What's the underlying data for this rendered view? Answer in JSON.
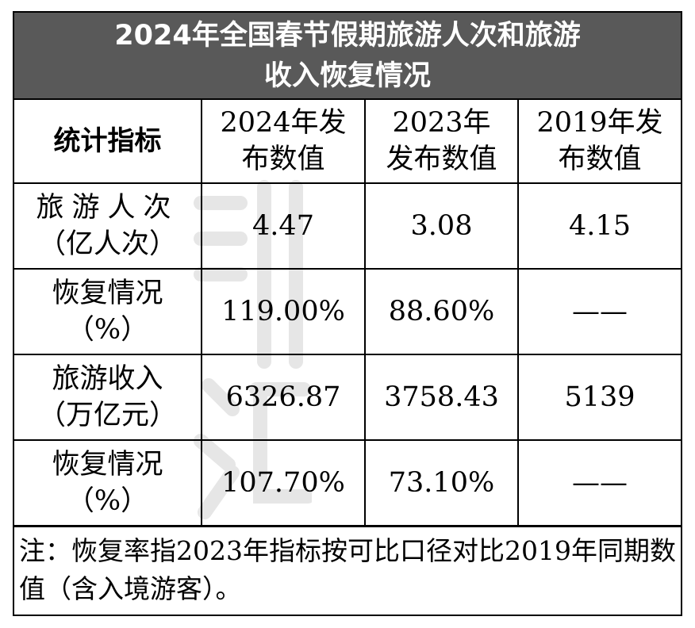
{
  "title": {
    "line1": "2024年全国春节假期旅游人次和旅游",
    "line2": "收入恢复情况"
  },
  "table": {
    "header": {
      "indicator": "统计指标",
      "col2024": [
        "2024年发",
        "布数值"
      ],
      "col2023": [
        "2023年",
        "发布数值"
      ],
      "col2019": [
        "2019年发",
        "布数值"
      ]
    },
    "rows": [
      {
        "label": [
          "旅游人次",
          "（亿人次）"
        ],
        "v2024": "4.47",
        "v2023": "3.08",
        "v2019": "4.15"
      },
      {
        "label": [
          "恢复情况",
          "（%）"
        ],
        "v2024": "119.00%",
        "v2023": "88.60%",
        "v2019": "——"
      },
      {
        "label": [
          "旅游收入",
          "（万亿元）"
        ],
        "v2024": "6326.87",
        "v2023": "3758.43",
        "v2019": "5139"
      },
      {
        "label": [
          "恢复情况",
          "（%）"
        ],
        "v2024": "107.70%",
        "v2023": "73.10%",
        "v2019": "——"
      }
    ]
  },
  "note": "注：恢复率指2023年指标按可比口径对比2019年同期数值（含入境游客）。",
  "colors": {
    "title_bg": "#595959",
    "title_text": "#ffffff",
    "border": "#000000"
  }
}
